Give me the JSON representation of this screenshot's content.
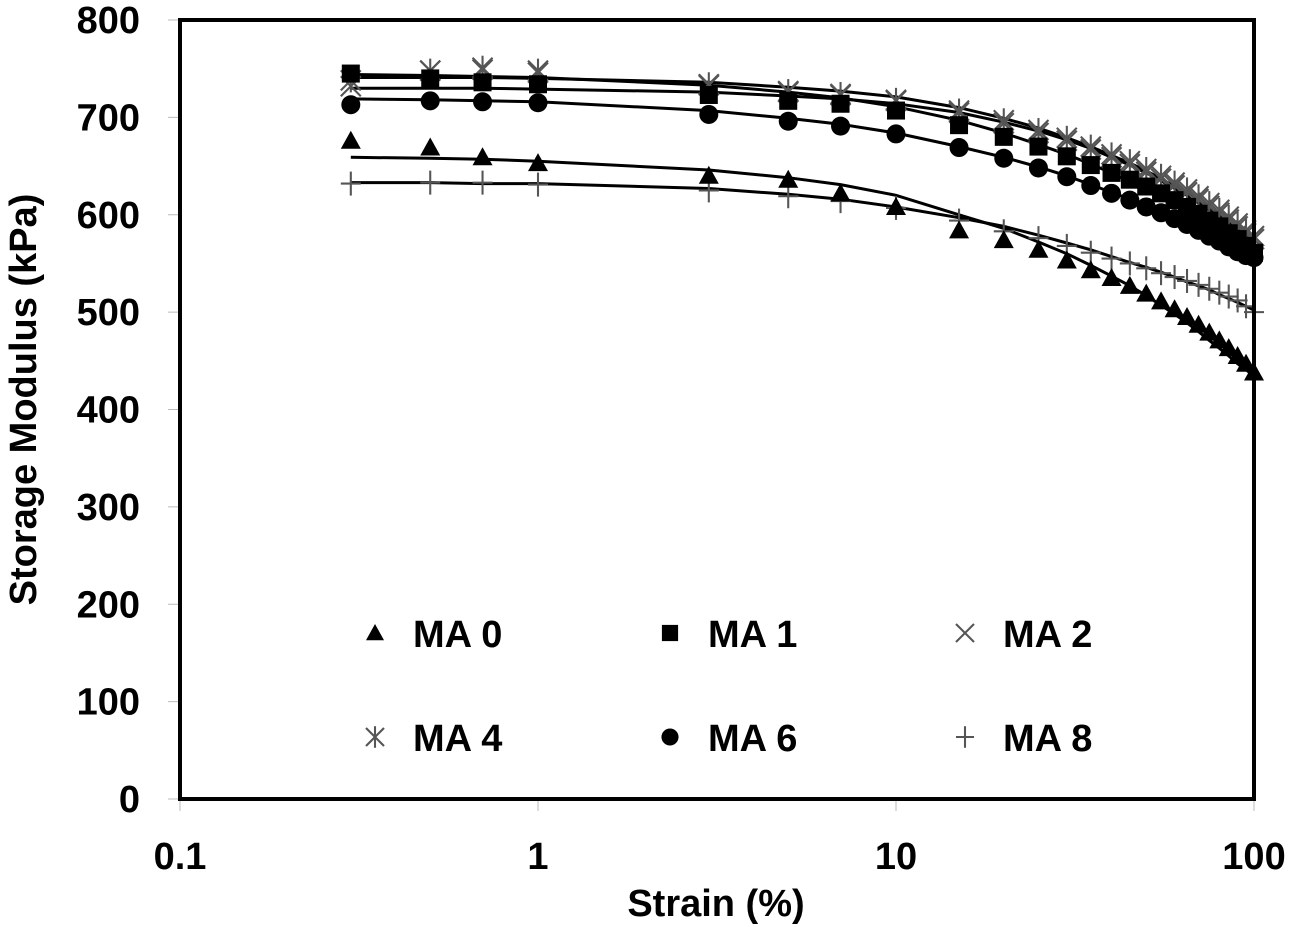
{
  "chart_data": {
    "type": "scatter",
    "title": "",
    "xlabel": "Strain (%)",
    "ylabel": "Storage Modulus (kPa)",
    "xscale": "log",
    "xlim": [
      0.1,
      100
    ],
    "ylim": [
      0,
      800
    ],
    "xticks": [
      "0.1",
      "1",
      "10",
      "100"
    ],
    "xtick_values": [
      0.1,
      1,
      10,
      100
    ],
    "yticks": [
      "0",
      "100",
      "200",
      "300",
      "400",
      "500",
      "600",
      "700",
      "800"
    ],
    "ytick_values": [
      0,
      100,
      200,
      300,
      400,
      500,
      600,
      700,
      800
    ],
    "grid": false,
    "legend_position": "bottom-center",
    "x": [
      0.3,
      0.5,
      0.7,
      1,
      3,
      5,
      7,
      10,
      15,
      20,
      25,
      30,
      35,
      40,
      45,
      50,
      55,
      60,
      65,
      70,
      75,
      80,
      85,
      90,
      95,
      100
    ],
    "series": [
      {
        "name": "MA 0",
        "marker": "triangle",
        "values": [
          676,
          669,
          659,
          653,
          640,
          636,
          622,
          608,
          584,
          574,
          564,
          553,
          543,
          535,
          527,
          519,
          511,
          503,
          495,
          487,
          479,
          471,
          463,
          455,
          447,
          438
        ],
        "fit": [
          659,
          658,
          657,
          655,
          646,
          638,
          631,
          620,
          600,
          586,
          572,
          560,
          548,
          537,
          527,
          517,
          507,
          498,
          489,
          480,
          471,
          463,
          455,
          447,
          441,
          434
        ]
      },
      {
        "name": "MA 1",
        "marker": "square",
        "values": [
          745,
          740,
          736,
          734,
          723,
          717,
          714,
          707,
          692,
          680,
          670,
          660,
          651,
          643,
          636,
          629,
          622,
          615,
          608,
          601,
          594,
          588,
          581,
          575,
          568,
          561
        ],
        "fit": [
          744,
          743,
          742,
          741,
          733,
          726,
          720,
          711,
          697,
          684,
          672,
          662,
          652,
          643,
          634,
          626,
          618,
          610,
          603,
          596,
          589,
          582,
          575,
          569,
          563,
          557
        ]
      },
      {
        "name": "MA 2",
        "marker": "x",
        "values": [
          732,
          748,
          749,
          746,
          733,
          726,
          723,
          717,
          705,
          694,
          684,
          676,
          667,
          659,
          652,
          644,
          637,
          630,
          623,
          616,
          609,
          602,
          595,
          588,
          581,
          575
        ],
        "fit": [
          730,
          730,
          730,
          729,
          726,
          722,
          719,
          714,
          705,
          695,
          686,
          677,
          668,
          659,
          651,
          643,
          635,
          627,
          620,
          612,
          605,
          598,
          591,
          584,
          578,
          571
        ]
      },
      {
        "name": "MA 4",
        "marker": "asterisk",
        "values": [
          738,
          748,
          751,
          748,
          734,
          727,
          724,
          718,
          707,
          697,
          687,
          679,
          670,
          662,
          655,
          647,
          640,
          633,
          626,
          619,
          612,
          605,
          598,
          591,
          584,
          578
        ],
        "fit": [
          741,
          741,
          741,
          740,
          736,
          731,
          727,
          721,
          710,
          699,
          689,
          679,
          670,
          661,
          653,
          645,
          637,
          629,
          622,
          614,
          607,
          600,
          593,
          586,
          579,
          573
        ]
      },
      {
        "name": "MA 6",
        "marker": "circle",
        "values": [
          713,
          717,
          716,
          715,
          703,
          696,
          691,
          683,
          669,
          658,
          648,
          639,
          630,
          622,
          615,
          608,
          602,
          596,
          590,
          584,
          578,
          573,
          567,
          562,
          558,
          556
        ],
        "fit": [
          719,
          718,
          717,
          716,
          707,
          699,
          693,
          684,
          670,
          659,
          649,
          640,
          631,
          623,
          616,
          609,
          602,
          596,
          590,
          584,
          578,
          572,
          567,
          562,
          557,
          553
        ]
      },
      {
        "name": "MA 8",
        "marker": "plus",
        "values": [
          632,
          633,
          633,
          631,
          625,
          619,
          614,
          607,
          594,
          583,
          576,
          568,
          561,
          555,
          550,
          545,
          540,
          536,
          532,
          528,
          524,
          520,
          516,
          512,
          506,
          500
        ],
        "fit": [
          633,
          633,
          632,
          632,
          627,
          621,
          616,
          608,
          597,
          588,
          579,
          571,
          564,
          557,
          551,
          546,
          541,
          536,
          531,
          527,
          523,
          518,
          514,
          510,
          506,
          502
        ]
      }
    ]
  }
}
